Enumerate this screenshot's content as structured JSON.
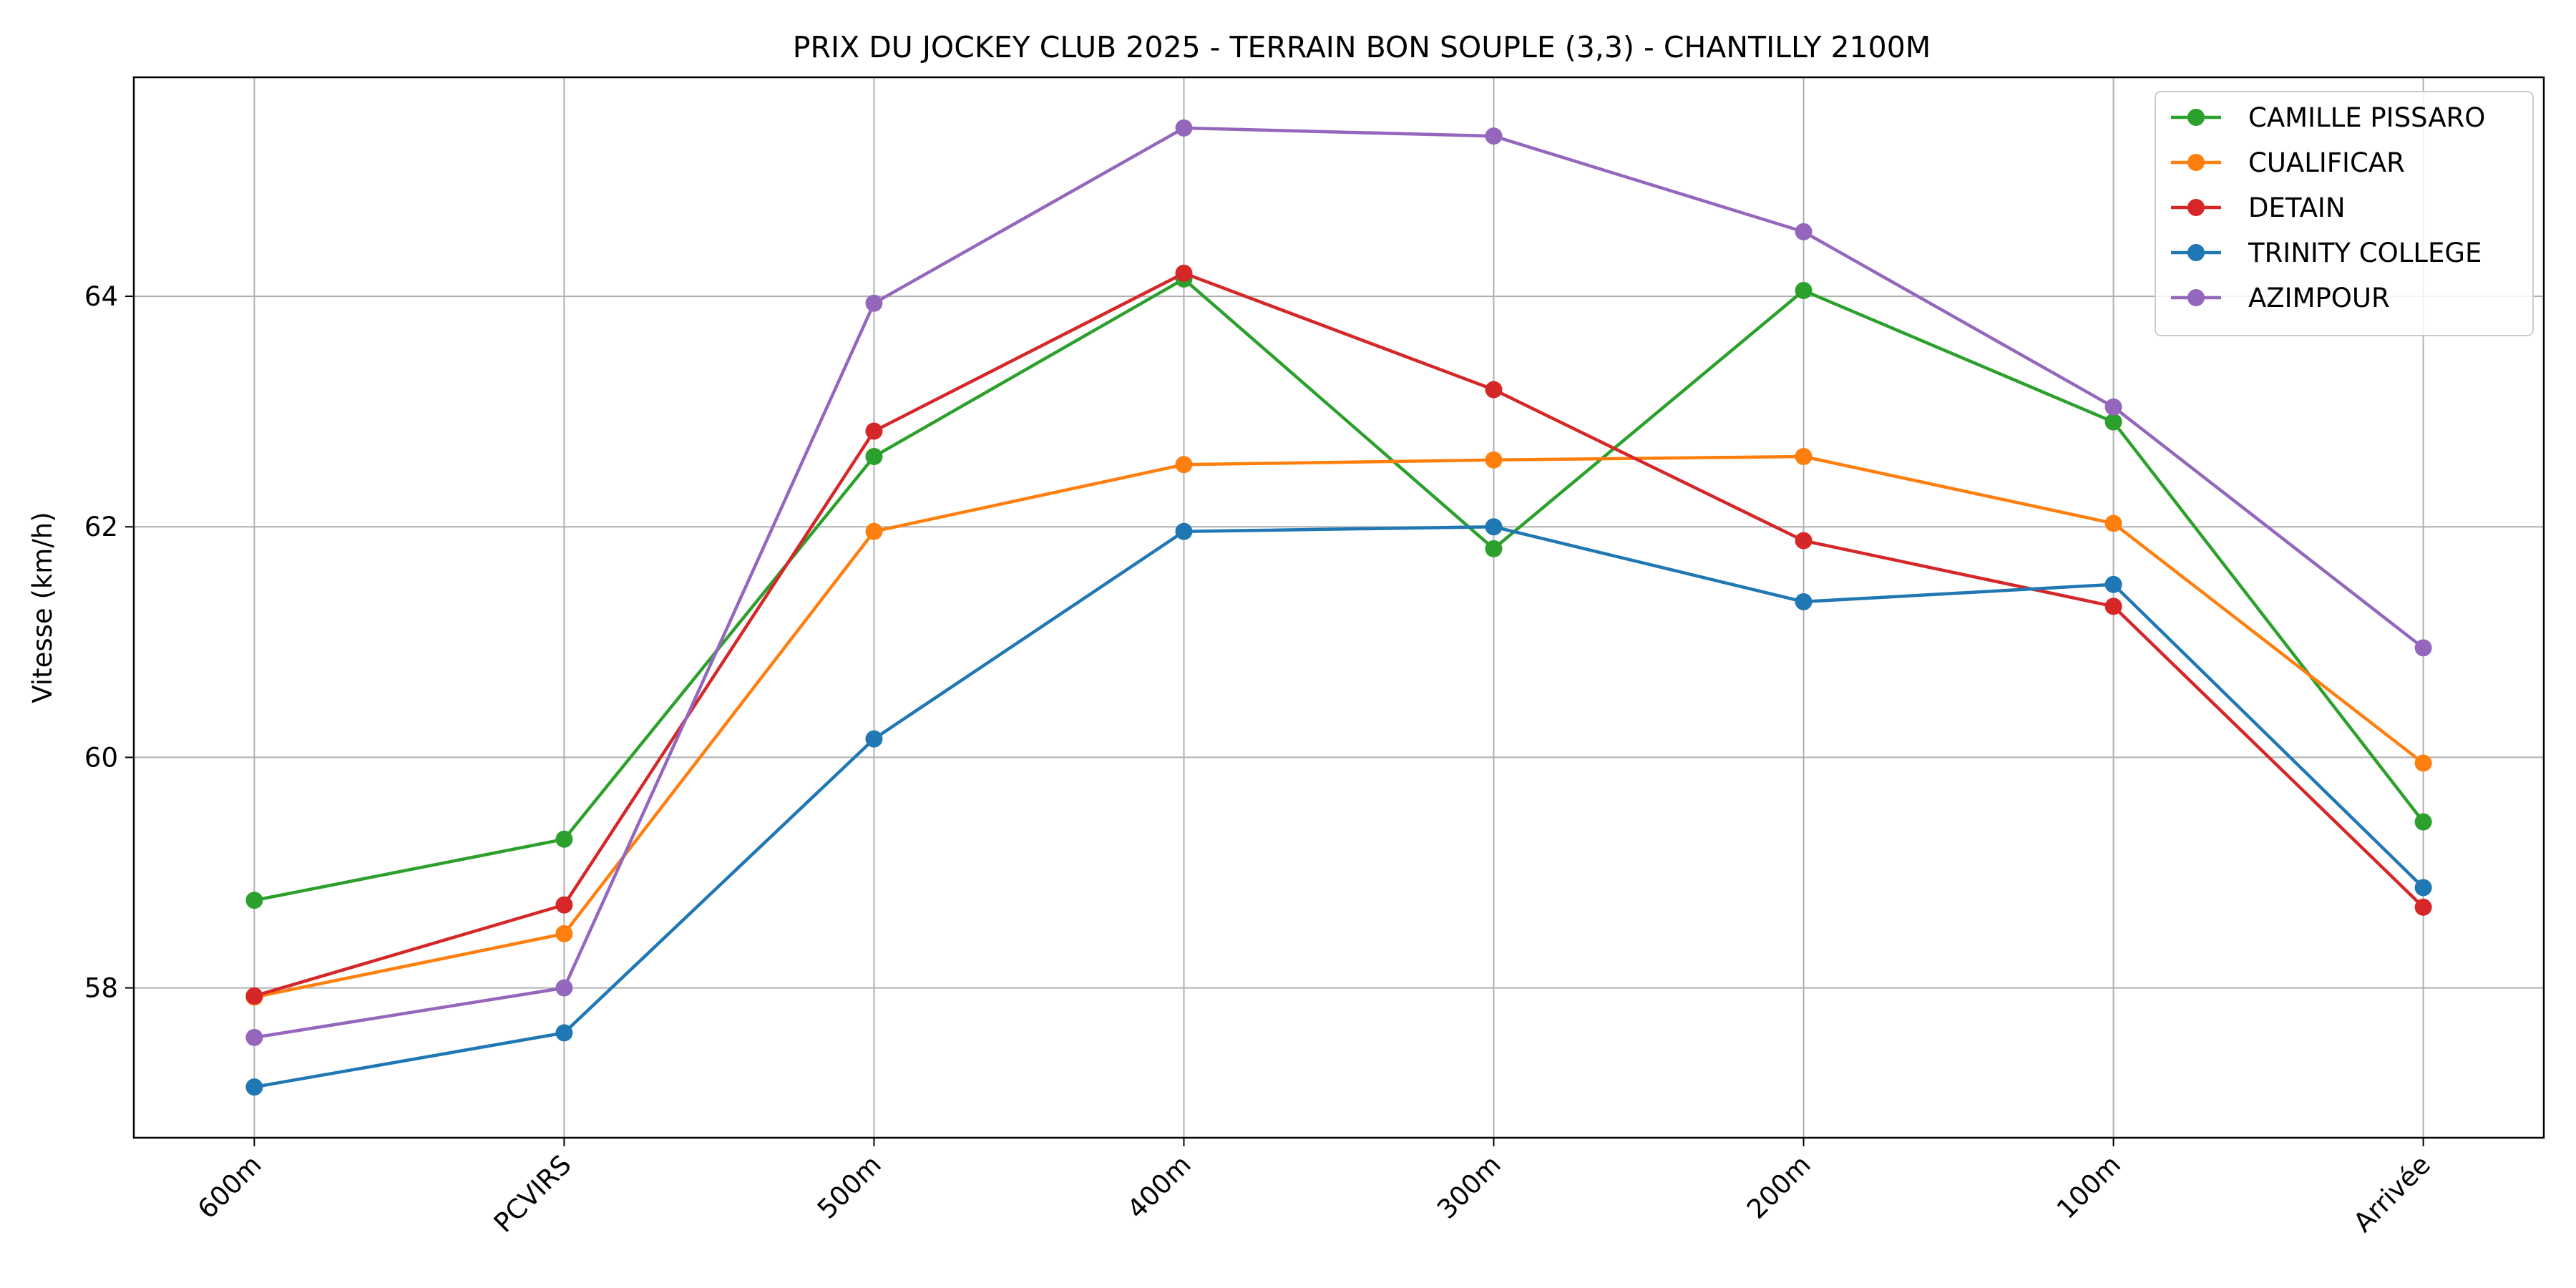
{
  "chart_data": {
    "type": "line",
    "title": "PRIX DU JOCKEY CLUB 2025 - TERRAIN BON SOUPLE (3,3) - CHANTILLY 2100M",
    "xlabel": "",
    "ylabel": "Vitesse (km/h)",
    "categories": [
      "600m",
      "PCVIRS",
      "500m",
      "400m",
      "300m",
      "200m",
      "100m",
      "Arrivée"
    ],
    "ylim": [
      56.7,
      65.9
    ],
    "yticks": [
      58,
      60,
      62,
      64
    ],
    "grid": true,
    "legend_position": "top-right",
    "series": [
      {
        "name": "CAMILLE PISSARO",
        "color": "#2ca02c",
        "values": [
          58.76,
          59.29,
          62.61,
          64.15,
          61.81,
          64.05,
          62.91,
          59.44
        ]
      },
      {
        "name": "CUALIFICAR",
        "color": "#ff7f0e",
        "values": [
          57.92,
          58.47,
          61.96,
          62.54,
          62.58,
          62.61,
          62.03,
          59.95
        ]
      },
      {
        "name": "DETAIN",
        "color": "#d62728",
        "values": [
          57.93,
          58.72,
          62.83,
          64.2,
          63.19,
          61.88,
          61.31,
          58.7
        ]
      },
      {
        "name": "TRINITY COLLEGE",
        "color": "#1f77b4",
        "values": [
          57.14,
          57.61,
          60.16,
          61.96,
          62.0,
          61.35,
          61.5,
          58.87
        ]
      },
      {
        "name": "AZIMPOUR",
        "color": "#9467bd",
        "values": [
          57.57,
          58.0,
          63.94,
          65.46,
          65.39,
          64.56,
          63.04,
          60.95
        ]
      }
    ]
  }
}
